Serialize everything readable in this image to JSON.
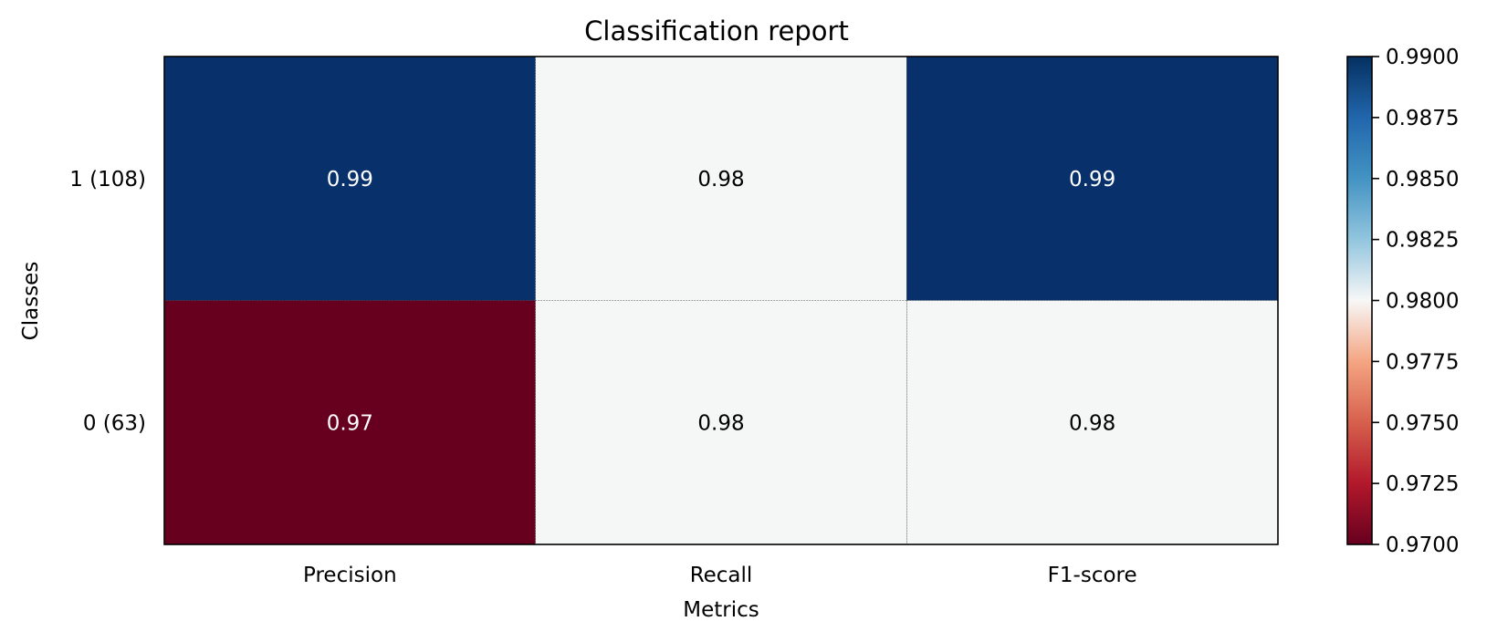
{
  "chart_data": {
    "type": "heatmap",
    "title": "Classification report",
    "xlabel": "Metrics",
    "ylabel": "Classes",
    "x_categories": [
      "Precision",
      "Recall",
      "F1-score"
    ],
    "y_categories": [
      "1 (108)",
      "0 (63)"
    ],
    "values": [
      [
        0.99,
        0.98,
        0.99
      ],
      [
        0.97,
        0.98,
        0.98
      ]
    ],
    "cell_labels": [
      [
        "0.99",
        "0.98",
        "0.99"
      ],
      [
        "0.97",
        "0.98",
        "0.98"
      ]
    ],
    "colormap": "RdBu",
    "color_range": [
      0.97,
      0.99
    ],
    "colorbar_ticks": [
      0.97,
      0.9725,
      0.975,
      0.9775,
      0.98,
      0.9825,
      0.985,
      0.9875,
      0.99
    ],
    "colorbar_tick_labels": [
      "0.9700",
      "0.9725",
      "0.9750",
      "0.9775",
      "0.9800",
      "0.9825",
      "0.9850",
      "0.9875",
      "0.9900"
    ],
    "colors": {
      "high": "#08306b",
      "mid": "#f5f7f7",
      "low": "#67001f",
      "cell_grid": "#555555"
    }
  }
}
